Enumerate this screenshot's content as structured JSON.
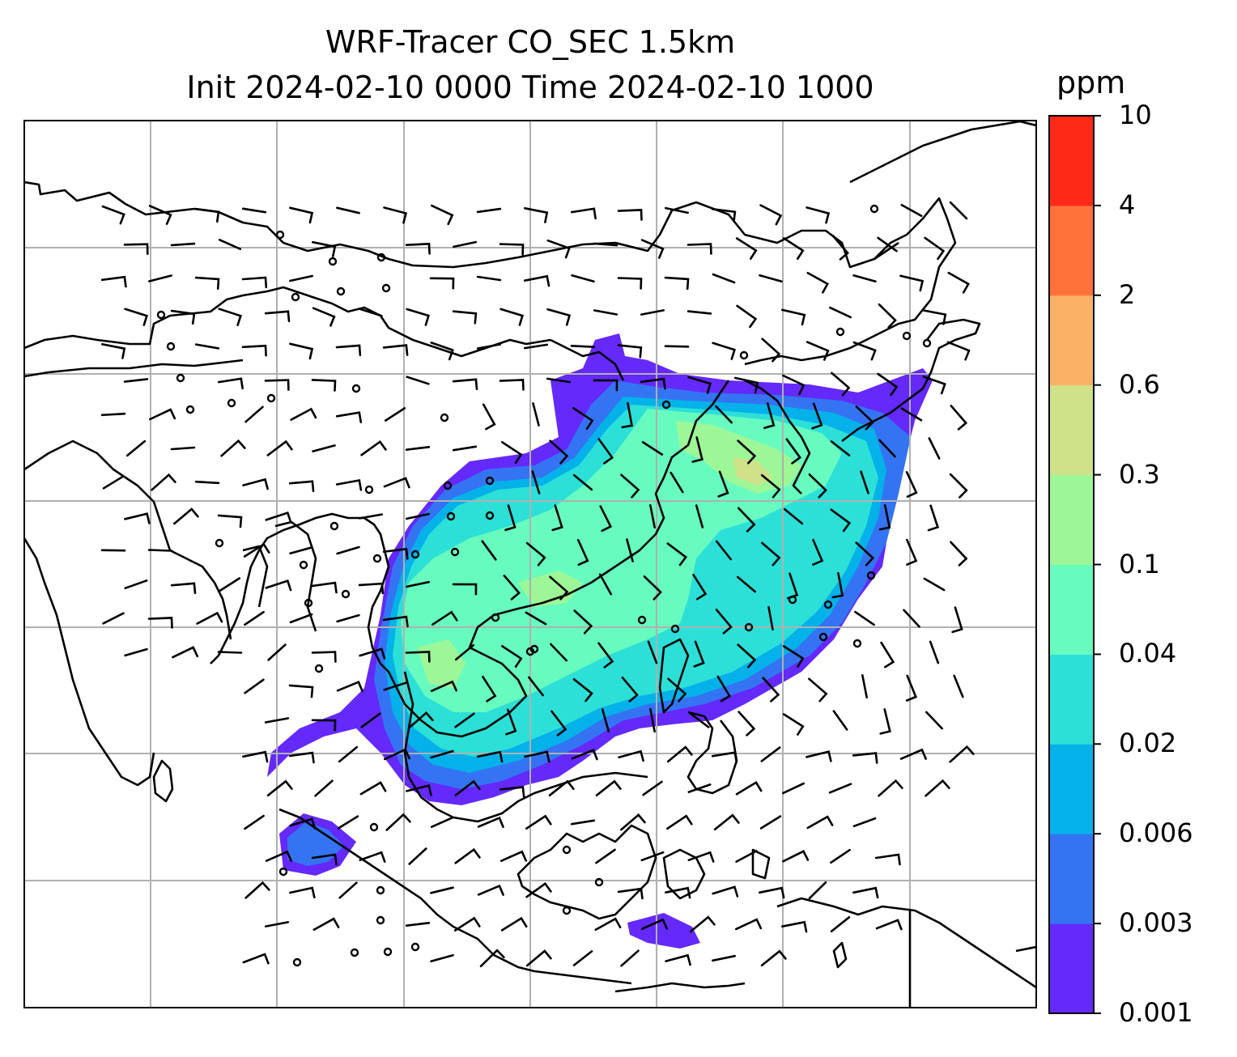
{
  "title": {
    "line1": "WRF-Tracer CO_SEC 1.5km",
    "line2": "Init 2024-02-10 0000 Time 2024-02-10 1000"
  },
  "colorbar": {
    "unit": "ppm",
    "levels": [
      "0.001",
      "0.003",
      "0.006",
      "0.02",
      "0.04",
      "0.1",
      "0.3",
      "0.6",
      "2",
      "4",
      "10"
    ],
    "colors": [
      "#6429fb",
      "#3474f3",
      "#04b1e9",
      "#2ce0d8",
      "#68fbbf",
      "#9ef796",
      "#cfe289",
      "#fcb266",
      "#ff733b",
      "#ff2917"
    ]
  },
  "map": {
    "field": "CO_SEC",
    "level": "1.5km",
    "overlays": [
      "coastlines",
      "country-borders",
      "gridlines",
      "wind-barbs"
    ],
    "gridlines": "on"
  }
}
